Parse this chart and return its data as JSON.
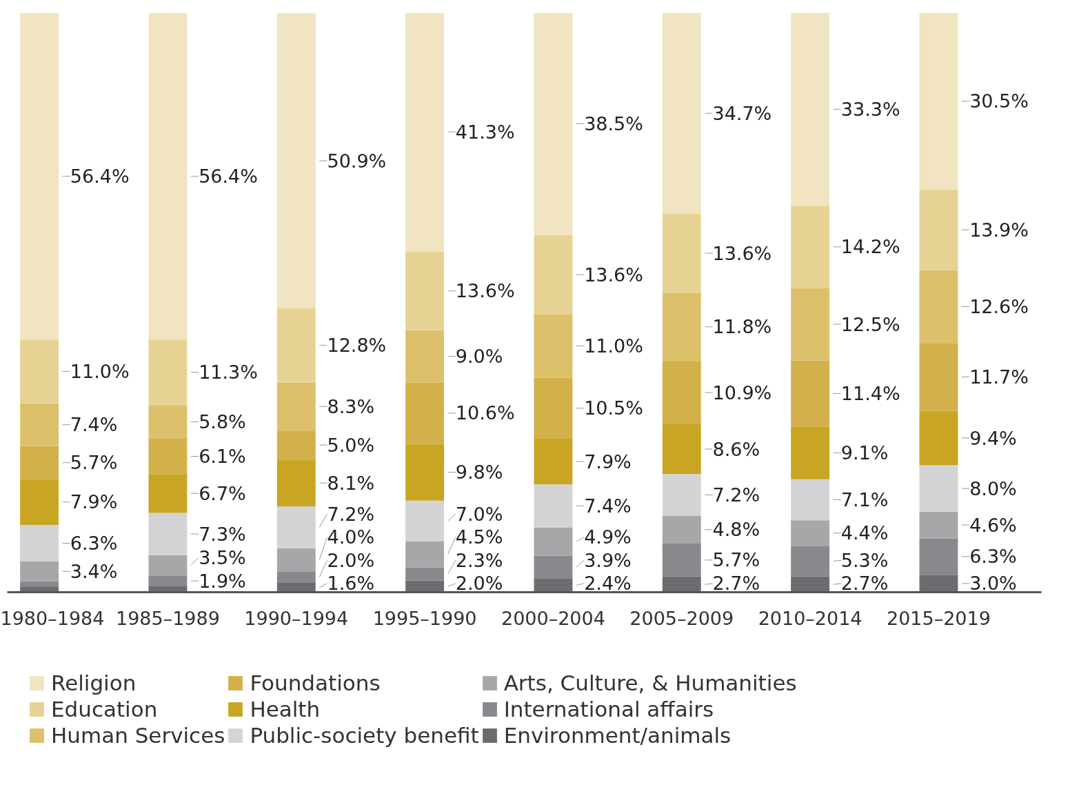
{
  "chart_data": {
    "type": "bar",
    "stacked": true,
    "categories": [
      "1980–1984",
      "1985–1989",
      "1990–1994",
      "1995–1990",
      "2000–2004",
      "2005–2009",
      "2010–2014",
      "2015–2019"
    ],
    "ylim": [
      0,
      100
    ],
    "tick_labels": "x",
    "legend": "bottom",
    "series": [
      {
        "name": "Environment/animals",
        "color": "#6d6b6f",
        "values": [
          0.9,
          1.0,
          1.6,
          2.0,
          2.4,
          2.7,
          2.7,
          3.0
        ],
        "value_labels": [
          null,
          null,
          "1.6%",
          "2.0%",
          "2.4%",
          "2.7%",
          "2.7%",
          "3.0%"
        ]
      },
      {
        "name": "International affairs",
        "color": "#8a888c",
        "values": [
          1.0,
          1.9,
          2.0,
          2.3,
          3.9,
          5.7,
          5.3,
          6.3
        ],
        "value_labels": [
          null,
          "1.9%",
          "2.0%",
          "2.3%",
          "3.9%",
          "5.7%",
          "5.3%",
          "6.3%"
        ]
      },
      {
        "name": "Arts, Culture, & Humanities",
        "color": "#a7a6a9",
        "values": [
          3.4,
          3.5,
          4.0,
          4.5,
          4.9,
          4.8,
          4.4,
          4.6
        ],
        "value_labels": [
          "3.4%",
          "3.5%",
          "4.0%",
          "4.5%",
          "4.9%",
          "4.8%",
          "4.4%",
          "4.6%"
        ]
      },
      {
        "name": "Public-society benefit",
        "color": "#d4d4d6",
        "values": [
          6.3,
          7.3,
          7.2,
          7.0,
          7.4,
          7.2,
          7.1,
          8.0
        ],
        "value_labels": [
          "6.3%",
          "7.3%",
          "7.2%",
          "7.0%",
          "7.4%",
          "7.2%",
          "7.1%",
          "8.0%"
        ]
      },
      {
        "name": "Health",
        "color": "#c9a524",
        "values": [
          7.9,
          6.7,
          8.1,
          9.8,
          7.9,
          8.6,
          9.1,
          9.4
        ],
        "value_labels": [
          "7.9%",
          "6.7%",
          "8.1%",
          "9.8%",
          "7.9%",
          "8.6%",
          "9.1%",
          "9.4%"
        ]
      },
      {
        "name": "Foundations",
        "color": "#d2b04a",
        "values": [
          5.7,
          6.1,
          5.0,
          10.6,
          10.5,
          10.9,
          11.4,
          11.7
        ],
        "value_labels": [
          "5.7%",
          "6.1%",
          "5.0%",
          "10.6%",
          "10.5%",
          "10.9%",
          "11.4%",
          "11.7%"
        ]
      },
      {
        "name": "Human Services",
        "color": "#dcc06a",
        "values": [
          7.4,
          5.8,
          8.3,
          9.0,
          11.0,
          11.8,
          12.5,
          12.6
        ],
        "value_labels": [
          "7.4%",
          "5.8%",
          "8.3%",
          "9.0%",
          "11.0%",
          "11.8%",
          "12.5%",
          "12.6%"
        ]
      },
      {
        "name": "Education",
        "color": "#e6d394",
        "values": [
          11.0,
          11.3,
          12.8,
          13.6,
          13.6,
          13.6,
          14.2,
          13.9
        ],
        "value_labels": [
          "11.0%",
          "11.3%",
          "12.8%",
          "13.6%",
          "13.6%",
          "13.6%",
          "14.2%",
          "13.9%"
        ]
      },
      {
        "name": "Religion",
        "color": "#f0e5c0",
        "values": [
          56.4,
          56.4,
          50.9,
          41.3,
          38.5,
          34.7,
          33.3,
          30.5
        ],
        "value_labels": [
          "56.4%",
          "56.4%",
          "50.9%",
          "41.3%",
          "38.5%",
          "34.7%",
          "33.3%",
          "30.5%"
        ]
      }
    ]
  }
}
